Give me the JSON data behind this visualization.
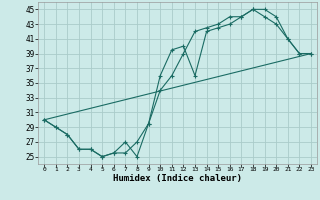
{
  "title": "",
  "xlabel": "Humidex (Indice chaleur)",
  "bg_color": "#cceae8",
  "grid_color": "#aaccca",
  "line_color": "#1a6b63",
  "xlim": [
    -0.5,
    23.5
  ],
  "ylim": [
    24.0,
    46.0
  ],
  "yticks": [
    25,
    27,
    29,
    31,
    33,
    35,
    37,
    39,
    41,
    43,
    45
  ],
  "xticks": [
    0,
    1,
    2,
    3,
    4,
    5,
    6,
    7,
    8,
    9,
    10,
    11,
    12,
    13,
    14,
    15,
    16,
    17,
    18,
    19,
    20,
    21,
    22,
    23
  ],
  "line1_x": [
    0,
    1,
    2,
    3,
    4,
    5,
    6,
    7,
    8,
    9,
    10,
    11,
    12,
    13,
    14,
    15,
    16,
    17,
    18,
    19,
    20,
    21,
    22,
    23
  ],
  "line1_y": [
    30,
    29,
    28,
    26,
    26,
    25,
    25.5,
    27,
    25,
    29.5,
    36,
    39.5,
    40,
    36,
    42,
    42.5,
    43,
    44,
    45,
    45,
    44,
    41,
    39,
    39
  ],
  "line2_x": [
    0,
    1,
    2,
    3,
    4,
    5,
    6,
    7,
    8,
    9,
    10,
    11,
    12,
    13,
    14,
    15,
    16,
    17,
    18,
    19,
    20,
    21,
    22,
    23
  ],
  "line2_y": [
    30,
    29,
    28,
    26,
    26,
    25,
    25.5,
    25.5,
    27,
    29.5,
    34,
    36,
    39,
    42,
    42.5,
    43,
    44,
    44,
    45,
    44,
    43,
    41,
    39,
    39
  ],
  "line3_x": [
    0,
    23
  ],
  "line3_y": [
    30,
    39
  ]
}
